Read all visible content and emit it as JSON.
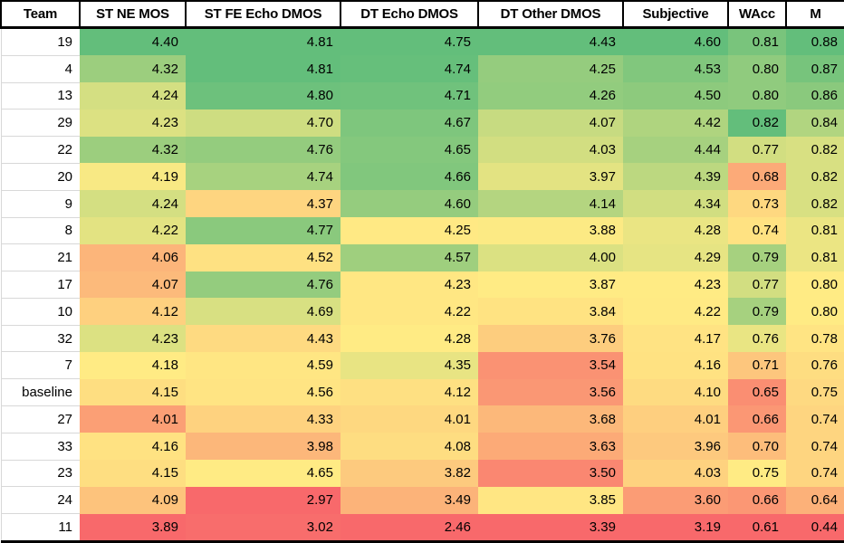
{
  "chart_data": {
    "type": "heatmap",
    "title": "Team results heatmap table",
    "columns": [
      "Team",
      "ST NE MOS",
      "ST FE Echo DMOS",
      "DT Echo DMOS",
      "DT Other DMOS",
      "Subjective",
      "WAcc",
      "M"
    ],
    "rows": [
      {
        "team": "19",
        "values": [
          "4.40",
          "4.81",
          "4.75",
          "4.43",
          "4.60",
          "0.81",
          "0.88"
        ]
      },
      {
        "team": "4",
        "values": [
          "4.32",
          "4.81",
          "4.74",
          "4.25",
          "4.53",
          "0.80",
          "0.87"
        ]
      },
      {
        "team": "13",
        "values": [
          "4.24",
          "4.80",
          "4.71",
          "4.26",
          "4.50",
          "0.80",
          "0.86"
        ]
      },
      {
        "team": "29",
        "values": [
          "4.23",
          "4.70",
          "4.67",
          "4.07",
          "4.42",
          "0.82",
          "0.84"
        ]
      },
      {
        "team": "22",
        "values": [
          "4.32",
          "4.76",
          "4.65",
          "4.03",
          "4.44",
          "0.77",
          "0.82"
        ]
      },
      {
        "team": "20",
        "values": [
          "4.19",
          "4.74",
          "4.66",
          "3.97",
          "4.39",
          "0.68",
          "0.82"
        ]
      },
      {
        "team": "9",
        "values": [
          "4.24",
          "4.37",
          "4.60",
          "4.14",
          "4.34",
          "0.73",
          "0.82"
        ]
      },
      {
        "team": "8",
        "values": [
          "4.22",
          "4.77",
          "4.25",
          "3.88",
          "4.28",
          "0.74",
          "0.81"
        ]
      },
      {
        "team": "21",
        "values": [
          "4.06",
          "4.52",
          "4.57",
          "4.00",
          "4.29",
          "0.79",
          "0.81"
        ]
      },
      {
        "team": "17",
        "values": [
          "4.07",
          "4.76",
          "4.23",
          "3.87",
          "4.23",
          "0.77",
          "0.80"
        ]
      },
      {
        "team": "10",
        "values": [
          "4.12",
          "4.69",
          "4.22",
          "3.84",
          "4.22",
          "0.79",
          "0.80"
        ]
      },
      {
        "team": "32",
        "values": [
          "4.23",
          "4.43",
          "4.28",
          "3.76",
          "4.17",
          "0.76",
          "0.78"
        ]
      },
      {
        "team": "7",
        "values": [
          "4.18",
          "4.59",
          "4.35",
          "3.54",
          "4.16",
          "0.71",
          "0.76"
        ]
      },
      {
        "team": "baseline",
        "values": [
          "4.15",
          "4.56",
          "4.12",
          "3.56",
          "4.10",
          "0.65",
          "0.75"
        ]
      },
      {
        "team": "27",
        "values": [
          "4.01",
          "4.33",
          "4.01",
          "3.68",
          "4.01",
          "0.66",
          "0.74"
        ]
      },
      {
        "team": "33",
        "values": [
          "4.16",
          "3.98",
          "4.08",
          "3.63",
          "3.96",
          "0.70",
          "0.74"
        ]
      },
      {
        "team": "23",
        "values": [
          "4.15",
          "4.65",
          "3.82",
          "3.50",
          "4.03",
          "0.75",
          "0.74"
        ]
      },
      {
        "team": "24",
        "values": [
          "4.09",
          "2.97",
          "3.49",
          "3.85",
          "3.60",
          "0.66",
          "0.64"
        ]
      },
      {
        "team": "11",
        "values": [
          "3.89",
          "3.02",
          "2.46",
          "3.39",
          "3.19",
          "0.61",
          "0.44"
        ]
      }
    ],
    "color_scale": {
      "applied": "per-column",
      "min_color": "#F8696B",
      "mid_color": "#FFEB84",
      "max_color": "#63BE7B",
      "midpoint": "50th percentile"
    },
    "layout_hints": {
      "header_background": "#FFFFFF",
      "team_column_background": "#FFFFFF",
      "grid": "none in heatmap area, light gray in Team column",
      "value_alignment": "right"
    }
  }
}
